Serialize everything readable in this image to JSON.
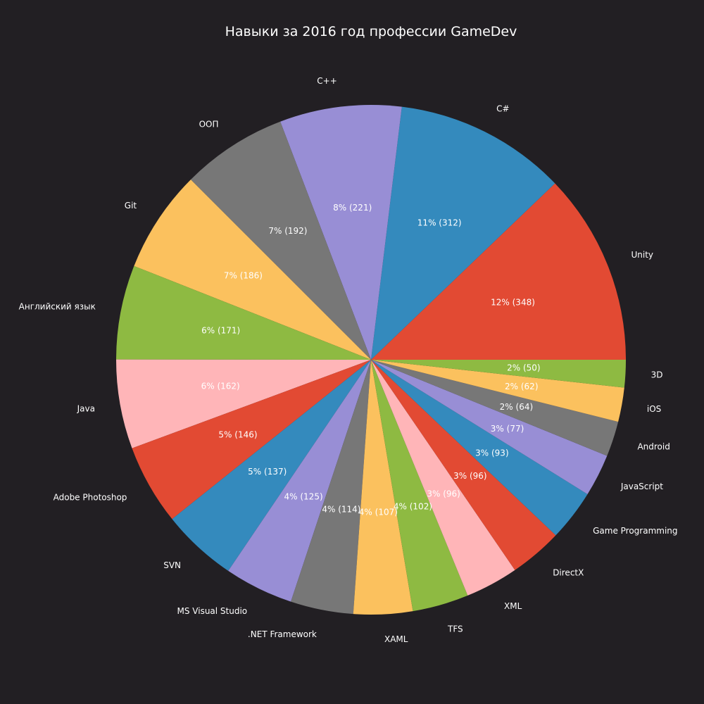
{
  "chart_data": {
    "type": "pie",
    "title": "Навыки за 2016 год профессии GameDev",
    "start_angle": 0,
    "direction": "counterclockwise",
    "slices": [
      {
        "label": "Unity",
        "value": 348,
        "percent_text": "12%  (348)",
        "color": "#e24a33"
      },
      {
        "label": "C#",
        "value": 312,
        "percent_text": "11%  (312)",
        "color": "#348abd"
      },
      {
        "label": "C++",
        "value": 221,
        "percent_text": "8%  (221)",
        "color": "#988ed5"
      },
      {
        "label": "ООП",
        "value": 192,
        "percent_text": "7%  (192)",
        "color": "#777777"
      },
      {
        "label": "Git",
        "value": 186,
        "percent_text": "7%  (186)",
        "color": "#fbc15e"
      },
      {
        "label": "Английский язык",
        "value": 171,
        "percent_text": "6%  (171)",
        "color": "#8eba42"
      },
      {
        "label": "Java",
        "value": 162,
        "percent_text": "6%  (162)",
        "color": "#ffb5b8"
      },
      {
        "label": "Adobe Photoshop",
        "value": 146,
        "percent_text": "5%  (146)",
        "color": "#e24a33"
      },
      {
        "label": "SVN",
        "value": 137,
        "percent_text": "5%  (137)",
        "color": "#348abd"
      },
      {
        "label": "MS Visual Studio",
        "value": 125,
        "percent_text": "4%  (125)",
        "color": "#988ed5"
      },
      {
        "label": ".NET Framework",
        "value": 114,
        "percent_text": "4%  (114)",
        "color": "#777777"
      },
      {
        "label": "XAML",
        "value": 107,
        "percent_text": "4%  (107)",
        "color": "#fbc15e"
      },
      {
        "label": "TFS",
        "value": 102,
        "percent_text": "4%  (102)",
        "color": "#8eba42"
      },
      {
        "label": "XML",
        "value": 96,
        "percent_text": "3%  (96)",
        "color": "#ffb5b8"
      },
      {
        "label": "DirectX",
        "value": 96,
        "percent_text": "3%  (96)",
        "color": "#e24a33"
      },
      {
        "label": "Game Programming",
        "value": 93,
        "percent_text": "3%  (93)",
        "color": "#348abd"
      },
      {
        "label": "JavaScript",
        "value": 77,
        "percent_text": "3%  (77)",
        "color": "#988ed5"
      },
      {
        "label": "Android",
        "value": 64,
        "percent_text": "2%  (64)",
        "color": "#777777"
      },
      {
        "label": "iOS",
        "value": 62,
        "percent_text": "2%  (62)",
        "color": "#fbc15e"
      },
      {
        "label": "3D",
        "value": 50,
        "percent_text": "2%  (50)",
        "color": "#8eba42"
      }
    ]
  }
}
